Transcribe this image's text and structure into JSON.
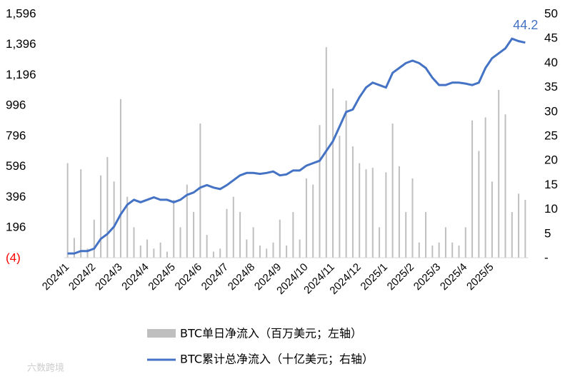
{
  "chart_data": {
    "type": "bar_line",
    "categories": [
      "2024/1",
      null,
      null,
      null,
      "2024/2",
      null,
      null,
      null,
      "2024/3",
      null,
      null,
      null,
      "2024/4",
      null,
      null,
      null,
      "2024/5",
      null,
      null,
      null,
      "2024/6",
      null,
      null,
      null,
      "2024/7",
      null,
      null,
      null,
      "2024/8",
      null,
      null,
      null,
      "2024/9",
      null,
      null,
      null,
      "2024/10",
      null,
      null,
      null,
      "2024/11",
      null,
      null,
      null,
      "2024/12",
      null,
      null,
      null,
      "2025/1",
      null,
      null,
      null,
      "2025/2",
      null,
      null,
      null,
      "2025/3",
      null,
      null,
      null,
      "2025/4",
      null,
      null,
      null,
      "2025/5",
      null,
      null,
      null,
      null,
      null
    ],
    "series": [
      {
        "name": "BTC单日净流入（百万美元；左轴）",
        "color": "#bfbfbf",
        "axis": "y",
        "values": [
          620,
          130,
          580,
          60,
          250,
          540,
          660,
          500,
          1040,
          400,
          200,
          80,
          120,
          60,
          100,
          40,
          380,
          200,
          480,
          300,
          880,
          150,
          40,
          60,
          320,
          400,
          300,
          120,
          200,
          80,
          60,
          100,
          250,
          80,
          300,
          120,
          520,
          480,
          870,
          1380,
          1110,
          800,
          1030,
          730,
          620,
          580,
          590,
          200,
          560,
          880,
          600,
          300,
          520,
          100,
          300,
          80,
          100,
          200,
          100,
          80,
          200,
          900,
          700,
          920,
          500,
          1100,
          940,
          300,
          420,
          380
        ]
      },
      {
        "name": "BTC累计总净流入（十亿美元；右轴）",
        "color": "#4472c4",
        "axis": "y2",
        "values": [
          1,
          1,
          1.5,
          1.5,
          2,
          4,
          5,
          6.5,
          9,
          11,
          12,
          11.5,
          12,
          12.5,
          12,
          12,
          11.5,
          12,
          13,
          13.5,
          14.5,
          15,
          14.5,
          14.2,
          15,
          16,
          17,
          17.5,
          17.5,
          17.3,
          17.5,
          17.8,
          17,
          17.2,
          18,
          18,
          19,
          19.5,
          20,
          22,
          24,
          27,
          30,
          30.5,
          33,
          35,
          36,
          35.5,
          35,
          38,
          39,
          40,
          40.5,
          40,
          39,
          37,
          35.5,
          35.5,
          36,
          36,
          35.8,
          35.5,
          36,
          39,
          41,
          42,
          43,
          45,
          44.5,
          44.2
        ]
      }
    ],
    "annotation": "44.2",
    "ylim": [
      -4,
      1596
    ],
    "yticks": [
      {
        "value": -4,
        "label": "(4)"
      },
      196,
      396,
      596,
      796,
      996,
      {
        "value": 1196,
        "label": "1,196"
      },
      {
        "value": 1396,
        "label": "1,396"
      },
      {
        "value": 1596,
        "label": "1,596"
      }
    ],
    "y2lim": [
      0,
      50
    ],
    "y2ticks": [
      {
        "value": 0,
        "label": "-"
      },
      5,
      10,
      15,
      20,
      25,
      30,
      35,
      40,
      45,
      50
    ],
    "watermark": "六数跨境"
  }
}
